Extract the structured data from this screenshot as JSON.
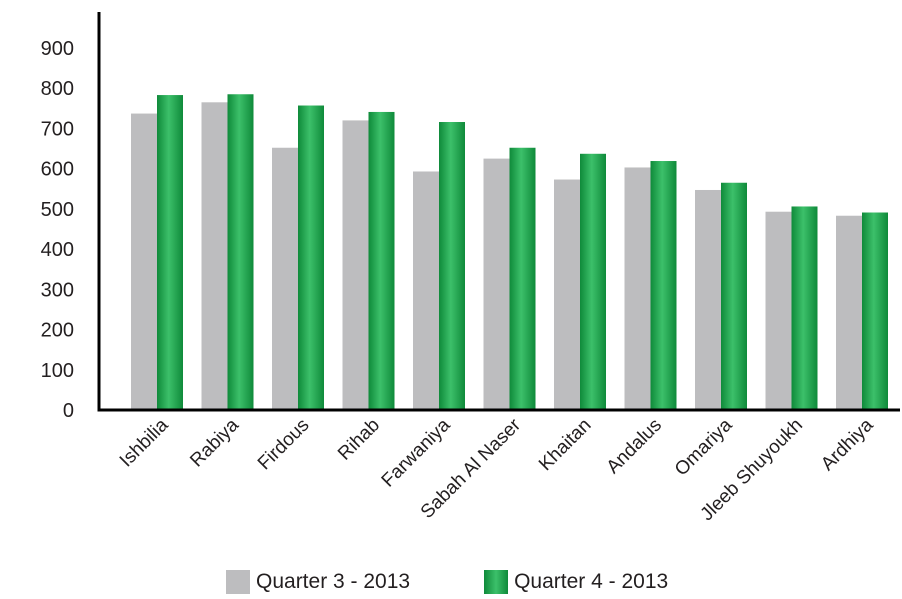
{
  "chart_data": {
    "type": "bar",
    "title": "",
    "xlabel": "",
    "ylabel": "",
    "ylim": [
      0,
      900
    ],
    "yticks": [
      0,
      100,
      200,
      300,
      400,
      500,
      600,
      700,
      800,
      900
    ],
    "grid": false,
    "legend_position": "bottom",
    "categories": [
      "Ishbilia",
      "Rabiya",
      "Firdous",
      "Rihab",
      "Farwaniya",
      "Sabah Al Naser",
      "Khaitan",
      "Andalus",
      "Omariya",
      "Jleeb Shuyoukh",
      "Ardhiya"
    ],
    "series": [
      {
        "name": "Quarter 3 - 2013",
        "color": "#bdbdbf",
        "values": [
          737,
          765,
          652,
          720,
          593,
          625,
          573,
          603,
          547,
          493,
          483
        ]
      },
      {
        "name": "Quarter 4 - 2013",
        "color": "#1f9e4a",
        "values": [
          783,
          785,
          757,
          741,
          716,
          652,
          637,
          619,
          565,
          506,
          491
        ]
      }
    ]
  },
  "legend": {
    "q3_label": "Quarter 3 - 2013",
    "q4_label": "Quarter 4 - 2013"
  }
}
